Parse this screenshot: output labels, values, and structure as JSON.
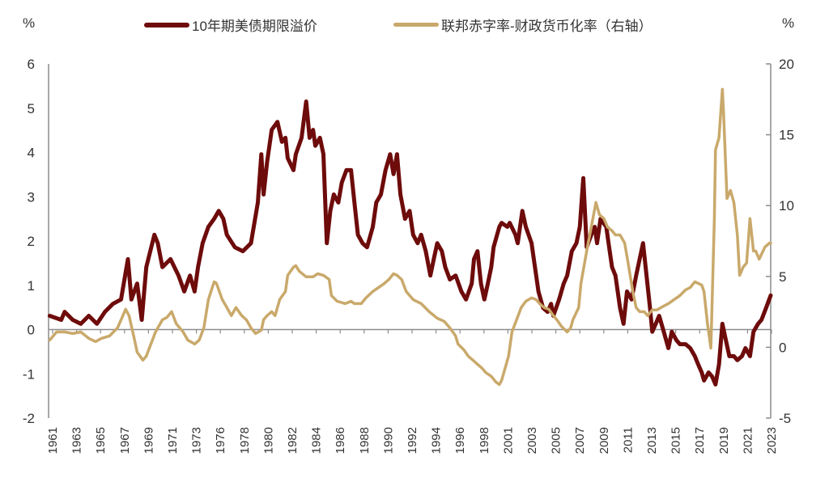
{
  "chart_data": {
    "type": "line",
    "title": "",
    "y_left_unit": "%",
    "y_right_unit": "%",
    "xlim": [
      1961,
      2023.8
    ],
    "ylim_left": [
      -2,
      6
    ],
    "ylim_right": [
      -5,
      20
    ],
    "y_left_ticks": [
      "6",
      "5",
      "4",
      "3",
      "2",
      "1",
      "0",
      "-1",
      "-2"
    ],
    "y_right_ticks": [
      "20",
      "15",
      "10",
      "5",
      "0",
      "-5"
    ],
    "x_tick_labels": [
      "1961",
      "1963",
      "1965",
      "1967",
      "1969",
      "1971",
      "1973",
      "1976",
      "1978",
      "1980",
      "1982",
      "1984",
      "1986",
      "1988",
      "1990",
      "1992",
      "1994",
      "1996",
      "1998",
      "2001",
      "2003",
      "2005",
      "2007",
      "2009",
      "2011",
      "2013",
      "2015",
      "2017",
      "2019",
      "2021",
      "2023"
    ],
    "grid": false,
    "legend_position": "top",
    "series": [
      {
        "name": "10年期美债期限溢价",
        "axis": "left",
        "color": "#6e0b0b",
        "x": [
          1961.1,
          1962.1,
          1962.4,
          1963.1,
          1963.8,
          1964.5,
          1965.2,
          1965.9,
          1966.6,
          1967.3,
          1967.9,
          1968.2,
          1968.7,
          1969.1,
          1969.5,
          1970.2,
          1970.5,
          1970.9,
          1971.6,
          1972.3,
          1972.8,
          1973.3,
          1973.7,
          1974.0,
          1974.4,
          1974.9,
          1975.4,
          1975.8,
          1976.2,
          1976.5,
          1977.2,
          1977.9,
          1978.6,
          1979.2,
          1979.5,
          1979.7,
          1980.0,
          1980.4,
          1980.9,
          1981.3,
          1981.6,
          1981.8,
          1982.3,
          1982.5,
          1983.0,
          1983.4,
          1983.7,
          1984.0,
          1984.2,
          1984.6,
          1984.9,
          1985.2,
          1985.5,
          1985.8,
          1986.2,
          1986.5,
          1986.9,
          1987.3,
          1987.6,
          1987.9,
          1988.3,
          1988.7,
          1989.2,
          1989.5,
          1989.9,
          1990.3,
          1990.7,
          1991.0,
          1991.3,
          1991.6,
          1992.0,
          1992.4,
          1992.7,
          1993.1,
          1993.4,
          1993.8,
          1994.2,
          1994.5,
          1994.8,
          1995.2,
          1995.5,
          1995.9,
          1996.4,
          1996.9,
          1997.3,
          1997.8,
          1998.0,
          1998.3,
          1998.6,
          1998.9,
          1999.2,
          1999.5,
          1999.7,
          2000.2,
          2000.4,
          2000.9,
          2001.1,
          2001.6,
          2001.8,
          2002.2,
          2002.5,
          2003.0,
          2003.3,
          2003.6,
          2004.0,
          2004.4,
          2004.7,
          2004.9,
          2005.4,
          2005.8,
          2006.1,
          2006.5,
          2006.9,
          2007.2,
          2007.5,
          2007.8,
          2008.2,
          2008.5,
          2008.7,
          2009.0,
          2009.5,
          2009.7,
          2010.0,
          2010.3,
          2010.7,
          2011.0,
          2011.3,
          2011.7,
          2012.1,
          2012.4,
          2012.7,
          2013.0,
          2013.3,
          2013.5,
          2013.8,
          2014.1,
          2014.5,
          2014.9,
          2015.2,
          2015.6,
          2015.9,
          2016.4,
          2016.8,
          2017.2,
          2017.5,
          2017.8,
          2018.0,
          2018.4,
          2018.7,
          2019.0,
          2019.3,
          2019.6,
          2019.9,
          2020.2,
          2020.6,
          2020.9,
          2021.3,
          2021.6,
          2022.0,
          2022.3,
          2022.7,
          2023.0,
          2023.4,
          2023.8
        ],
        "y": [
          0.31,
          0.22,
          0.4,
          0.22,
          0.13,
          0.31,
          0.13,
          0.4,
          0.58,
          0.68,
          1.59,
          0.68,
          1.04,
          0.22,
          1.41,
          2.14,
          1.95,
          1.41,
          1.59,
          1.22,
          0.86,
          1.22,
          0.86,
          1.41,
          1.95,
          2.32,
          2.5,
          2.68,
          2.5,
          2.14,
          1.86,
          1.77,
          1.95,
          2.87,
          3.96,
          3.05,
          3.78,
          4.51,
          4.69,
          4.24,
          4.33,
          3.87,
          3.6,
          3.96,
          4.33,
          5.15,
          4.33,
          4.51,
          4.15,
          4.33,
          3.96,
          1.95,
          2.68,
          3.05,
          2.87,
          3.32,
          3.6,
          3.6,
          2.87,
          2.14,
          1.95,
          1.86,
          2.32,
          2.87,
          3.05,
          3.6,
          3.96,
          3.51,
          3.96,
          3.05,
          2.5,
          2.68,
          2.14,
          1.95,
          2.14,
          1.77,
          1.22,
          1.59,
          1.95,
          1.77,
          1.41,
          1.13,
          1.22,
          0.86,
          0.68,
          1.04,
          1.59,
          1.77,
          1.04,
          0.68,
          1.04,
          1.41,
          1.86,
          2.32,
          2.41,
          2.32,
          2.41,
          2.14,
          1.95,
          2.68,
          2.32,
          1.95,
          1.41,
          0.86,
          0.49,
          0.4,
          0.58,
          0.31,
          0.68,
          1.04,
          1.22,
          1.77,
          1.95,
          2.32,
          3.42,
          1.86,
          2.14,
          2.32,
          1.95,
          2.5,
          2.32,
          1.95,
          1.41,
          1.22,
          0.49,
          0.13,
          0.86,
          0.68,
          1.22,
          1.59,
          1.95,
          1.22,
          0.49,
          -0.05,
          0.13,
          0.31,
          -0.05,
          -0.42,
          -0.05,
          -0.24,
          -0.33,
          -0.33,
          -0.42,
          -0.6,
          -0.79,
          -0.97,
          -1.15,
          -0.97,
          -1.06,
          -1.24,
          -0.79,
          0.13,
          -0.24,
          -0.6,
          -0.6,
          -0.69,
          -0.6,
          -0.42,
          -0.6,
          -0.05,
          0.13,
          0.22,
          0.49,
          0.77
        ]
      },
      {
        "name": "联邦赤字率-财政货币化率（右轴）",
        "axis": "right",
        "color": "#c9a96b",
        "x": [
          1961.1,
          1961.7,
          1962.4,
          1963.1,
          1963.8,
          1964.5,
          1965.1,
          1965.6,
          1966.3,
          1967.0,
          1967.7,
          1968.0,
          1968.4,
          1968.7,
          1969.2,
          1969.5,
          1969.9,
          1970.3,
          1970.9,
          1971.3,
          1971.7,
          1972.1,
          1972.7,
          1973.1,
          1973.7,
          1974.1,
          1974.5,
          1974.9,
          1975.4,
          1975.6,
          1976.1,
          1976.5,
          1976.9,
          1977.3,
          1977.8,
          1978.2,
          1978.6,
          1979.0,
          1979.5,
          1979.7,
          1980.0,
          1980.4,
          1980.7,
          1981.1,
          1981.6,
          1981.8,
          1982.3,
          1982.5,
          1982.8,
          1983.4,
          1984.0,
          1984.4,
          1984.9,
          1985.4,
          1985.6,
          1986.1,
          1986.8,
          1987.3,
          1987.6,
          1988.2,
          1988.6,
          1989.2,
          1989.7,
          1990.2,
          1990.6,
          1991.0,
          1991.3,
          1991.7,
          1992.1,
          1992.7,
          1993.4,
          1994.1,
          1994.8,
          1995.4,
          1995.9,
          1996.4,
          1996.6,
          1997.1,
          1997.5,
          1997.9,
          1998.3,
          1998.7,
          1999.0,
          1999.5,
          1999.9,
          2000.2,
          2000.4,
          2000.7,
          2001.0,
          2001.3,
          2001.7,
          2002.1,
          2002.5,
          2003.0,
          2003.4,
          2003.7,
          2004.1,
          2004.5,
          2004.9,
          2005.2,
          2005.6,
          2006.1,
          2006.4,
          2006.6,
          2007.1,
          2007.3,
          2007.8,
          2008.2,
          2008.6,
          2008.9,
          2009.3,
          2009.6,
          2010.0,
          2010.3,
          2010.7,
          2011.1,
          2011.4,
          2011.8,
          2012.1,
          2012.4,
          2012.8,
          2013.1,
          2013.5,
          2013.9,
          2014.5,
          2014.9,
          2015.4,
          2015.9,
          2016.4,
          2016.8,
          2017.2,
          2017.5,
          2017.8,
          2018.0,
          2018.3,
          2018.6,
          2018.9,
          2019.0,
          2019.3,
          2019.6,
          2019.7,
          2020.0,
          2020.3,
          2020.6,
          2020.9,
          2021.1,
          2021.4,
          2021.7,
          2022.0,
          2022.3,
          2022.5,
          2022.8,
          2023.3,
          2023.7,
          2023.8
        ],
        "y": [
          0.51,
          1.08,
          1.08,
          0.97,
          1.08,
          0.63,
          0.4,
          0.63,
          0.8,
          1.37,
          2.68,
          2.23,
          0.8,
          -0.34,
          -0.91,
          -0.63,
          0.23,
          1.08,
          1.94,
          2.11,
          2.51,
          1.66,
          1.08,
          0.51,
          0.23,
          0.51,
          1.37,
          3.37,
          4.62,
          4.51,
          3.37,
          2.8,
          2.23,
          2.8,
          2.23,
          1.94,
          1.37,
          0.97,
          1.2,
          1.94,
          2.23,
          2.51,
          2.23,
          3.37,
          3.94,
          5.08,
          5.65,
          5.76,
          5.37,
          4.97,
          4.97,
          5.19,
          5.08,
          4.79,
          3.65,
          3.25,
          3.08,
          3.25,
          3.08,
          3.08,
          3.48,
          3.94,
          4.22,
          4.51,
          4.79,
          5.19,
          5.08,
          4.79,
          3.94,
          3.37,
          3.08,
          2.51,
          2.05,
          1.83,
          1.37,
          0.8,
          0.23,
          -0.17,
          -0.63,
          -0.91,
          -1.2,
          -1.48,
          -1.77,
          -2.05,
          -2.45,
          -2.63,
          -2.34,
          -1.48,
          -0.63,
          1.08,
          1.94,
          2.8,
          3.25,
          3.48,
          3.37,
          3.08,
          2.8,
          2.68,
          2.23,
          1.94,
          1.48,
          1.08,
          1.37,
          1.94,
          2.8,
          4.51,
          6.79,
          8.5,
          10.22,
          9.36,
          9.08,
          8.5,
          8.22,
          7.93,
          7.93,
          7.36,
          5.94,
          3.94,
          2.8,
          2.51,
          2.51,
          2.23,
          2.63,
          2.63,
          2.91,
          3.08,
          3.37,
          3.65,
          4.05,
          4.22,
          4.62,
          4.51,
          4.39,
          3.94,
          1.66,
          -0.06,
          9.08,
          13.93,
          14.78,
          18.21,
          16.5,
          10.5,
          11.07,
          10.22,
          7.93,
          5.08,
          5.65,
          5.94,
          9.08,
          6.79,
          6.79,
          6.22,
          7.08,
          7.36,
          7.36
        ]
      }
    ]
  }
}
